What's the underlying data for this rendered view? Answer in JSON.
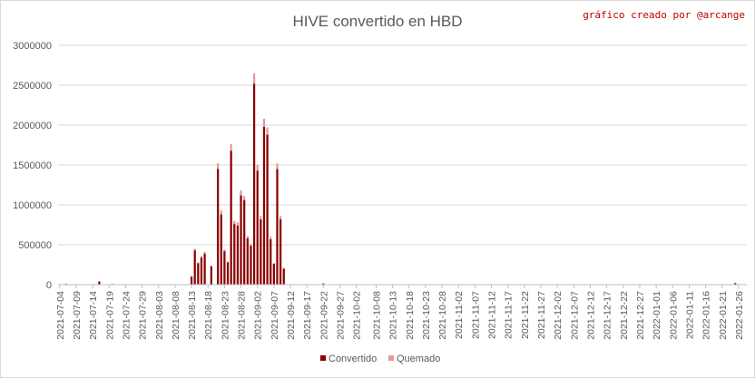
{
  "chart_data": {
    "type": "bar",
    "stacked": true,
    "title": "HIVE convertido en HBD",
    "credit": "gráfico creado por @arcange",
    "xlabel": "",
    "ylabel": "",
    "ylim": [
      0,
      3000000
    ],
    "yticks": [
      0,
      500000,
      1000000,
      1500000,
      2000000,
      2500000,
      3000000
    ],
    "yticks_labels": [
      "0",
      "500000",
      "1000000",
      "1500000",
      "2000000",
      "2500000",
      "3000000"
    ],
    "grid": true,
    "legend_position": "bottom",
    "x_start": "2021-07-04",
    "x_end": "2022-01-28",
    "x_tick_labels": [
      "2021-07-04",
      "2021-07-09",
      "2021-07-14",
      "2021-07-19",
      "2021-07-24",
      "2021-07-29",
      "2021-08-03",
      "2021-08-08",
      "2021-08-13",
      "2021-08-18",
      "2021-08-23",
      "2021-08-28",
      "2021-09-02",
      "2021-09-07",
      "2021-09-12",
      "2021-09-17",
      "2021-09-22",
      "2021-09-27",
      "2021-10-02",
      "2021-10-08",
      "2021-10-13",
      "2021-10-18",
      "2021-10-23",
      "2021-10-28",
      "2021-11-02",
      "2021-11-07",
      "2021-11-12",
      "2021-11-17",
      "2021-11-22",
      "2021-11-27",
      "2021-12-02",
      "2021-12-07",
      "2021-12-12",
      "2021-12-17",
      "2021-12-22",
      "2021-12-27",
      "2022-01-01",
      "2022-01-06",
      "2022-01-11",
      "2022-01-16",
      "2022-01-21",
      "2022-01-26"
    ],
    "points": [
      {
        "date": "2021-07-06",
        "convertido": 10000,
        "quemado": 0
      },
      {
        "date": "2021-07-16",
        "convertido": 40000,
        "quemado": 0
      },
      {
        "date": "2021-07-20",
        "convertido": 8000,
        "quemado": 0
      },
      {
        "date": "2021-07-31",
        "convertido": 6000,
        "quemado": 0
      },
      {
        "date": "2021-08-11",
        "convertido": 5000,
        "quemado": 0
      },
      {
        "date": "2021-08-13",
        "convertido": 100000,
        "quemado": 10000
      },
      {
        "date": "2021-08-14",
        "convertido": 430000,
        "quemado": 20000
      },
      {
        "date": "2021-08-15",
        "convertido": 270000,
        "quemado": 10000
      },
      {
        "date": "2021-08-16",
        "convertido": 340000,
        "quemado": 20000
      },
      {
        "date": "2021-08-17",
        "convertido": 390000,
        "quemado": 20000
      },
      {
        "date": "2021-08-19",
        "convertido": 230000,
        "quemado": 10000
      },
      {
        "date": "2021-08-21",
        "convertido": 1450000,
        "quemado": 70000
      },
      {
        "date": "2021-08-22",
        "convertido": 880000,
        "quemado": 50000
      },
      {
        "date": "2021-08-23",
        "convertido": 420000,
        "quemado": 20000
      },
      {
        "date": "2021-08-24",
        "convertido": 280000,
        "quemado": 10000
      },
      {
        "date": "2021-08-25",
        "convertido": 1680000,
        "quemado": 80000
      },
      {
        "date": "2021-08-26",
        "convertido": 760000,
        "quemado": 40000
      },
      {
        "date": "2021-08-27",
        "convertido": 740000,
        "quemado": 40000
      },
      {
        "date": "2021-08-28",
        "convertido": 1120000,
        "quemado": 60000
      },
      {
        "date": "2021-08-29",
        "convertido": 1060000,
        "quemado": 50000
      },
      {
        "date": "2021-08-30",
        "convertido": 580000,
        "quemado": 30000
      },
      {
        "date": "2021-08-31",
        "convertido": 490000,
        "quemado": 20000
      },
      {
        "date": "2021-09-01",
        "convertido": 2520000,
        "quemado": 130000
      },
      {
        "date": "2021-09-02",
        "convertido": 1430000,
        "quemado": 70000
      },
      {
        "date": "2021-09-03",
        "convertido": 820000,
        "quemado": 40000
      },
      {
        "date": "2021-09-04",
        "convertido": 1980000,
        "quemado": 100000
      },
      {
        "date": "2021-09-05",
        "convertido": 1880000,
        "quemado": 90000
      },
      {
        "date": "2021-09-06",
        "convertido": 570000,
        "quemado": 30000
      },
      {
        "date": "2021-09-07",
        "convertido": 260000,
        "quemado": 10000
      },
      {
        "date": "2021-09-08",
        "convertido": 1450000,
        "quemado": 70000
      },
      {
        "date": "2021-09-09",
        "convertido": 820000,
        "quemado": 40000
      },
      {
        "date": "2021-09-10",
        "convertido": 200000,
        "quemado": 10000
      },
      {
        "date": "2021-09-22",
        "convertido": 15000,
        "quemado": 0
      },
      {
        "date": "2022-01-25",
        "convertido": 20000,
        "quemado": 0
      }
    ],
    "series": [
      {
        "key": "convertido",
        "name": "Convertido",
        "color": "#8b0000"
      },
      {
        "key": "quemado",
        "name": "Quemado",
        "color": "#e39a9a"
      }
    ]
  }
}
